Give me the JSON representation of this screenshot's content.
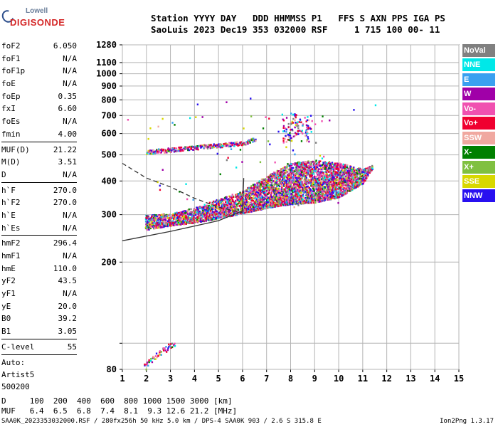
{
  "logo": {
    "line1": "Lowell",
    "line2": "DIGISONDE"
  },
  "header": {
    "line1": "Station YYYY DAY   DDD HHMMSS P1   FFS S AXN PPS IGA PS",
    "line2": "SaoLuis 2023 Dec19 353 032000 RSF     1 715 100 00- 11"
  },
  "params": {
    "group1": [
      {
        "name": "foF2",
        "value": "6.050"
      },
      {
        "name": "foF1",
        "value": "N/A"
      },
      {
        "name": "foF1p",
        "value": "N/A"
      },
      {
        "name": "foE",
        "value": "N/A"
      },
      {
        "name": "foEp",
        "value": "0.35"
      },
      {
        "name": "fxI",
        "value": "6.60"
      },
      {
        "name": "foEs",
        "value": "N/A"
      },
      {
        "name": "fmin",
        "value": "4.00"
      }
    ],
    "group2": [
      {
        "name": "MUF(D)",
        "value": "21.22"
      },
      {
        "name": "M(D)",
        "value": "3.51"
      },
      {
        "name": "D",
        "value": "N/A"
      }
    ],
    "group3": [
      {
        "name": "h`F",
        "value": "270.0"
      },
      {
        "name": "h`F2",
        "value": "270.0"
      },
      {
        "name": "h`E",
        "value": "N/A"
      },
      {
        "name": "h`Es",
        "value": "N/A"
      }
    ],
    "group4": [
      {
        "name": "hmF2",
        "value": "296.4"
      },
      {
        "name": "hmF1",
        "value": "N/A"
      },
      {
        "name": "hmE",
        "value": "110.0"
      },
      {
        "name": "yF2",
        "value": "43.5"
      },
      {
        "name": "yF1",
        "value": "N/A"
      },
      {
        "name": "yE",
        "value": "20.0"
      },
      {
        "name": "B0",
        "value": "39.2"
      },
      {
        "name": "B1",
        "value": "3.05"
      }
    ],
    "clevel": {
      "name": "C-level",
      "value": "55"
    },
    "auto": [
      "Auto:",
      "Artist5",
      "500200"
    ]
  },
  "legend": [
    {
      "label": "NoVal",
      "color": "#808080"
    },
    {
      "label": "NNE",
      "color": "#00e8e8"
    },
    {
      "label": "E",
      "color": "#3aa0f0"
    },
    {
      "label": "W",
      "color": "#a000a8"
    },
    {
      "label": "Vo-",
      "color": "#f050b0"
    },
    {
      "label": "Vo+",
      "color": "#f00030"
    },
    {
      "label": "SSW",
      "color": "#f0a8a0"
    },
    {
      "label": "X-",
      "color": "#008000"
    },
    {
      "label": "X+",
      "color": "#80c040"
    },
    {
      "label": "SSE",
      "color": "#d8d800"
    },
    {
      "label": "NNW",
      "color": "#2810f0"
    }
  ],
  "bottom": {
    "line1": "D     100  200  400  600  800 1000 1500 3000 [km]",
    "line2": "MUF   6.4  6.5  6.8  7.4  8.1  9.3 12.6 21.2 [MHz]"
  },
  "footer": "SAA0K_2023353032000.RSF / 280fx256h 50 kHz 5.0 km / DPS-4 SAA0K 903 / 2.6 S 315.8 E",
  "version": "Ion2Png 1.3.17",
  "chart_data": {
    "type": "scatter",
    "xlim": [
      1,
      15
    ],
    "ylim": [
      80,
      1280
    ],
    "y_scale": "log",
    "x_ticks": [
      1,
      2,
      3,
      4,
      5,
      6,
      7,
      8,
      9,
      10,
      11,
      12,
      13,
      14,
      15
    ],
    "y_ticks": [
      80,
      100,
      200,
      300,
      400,
      500,
      600,
      700,
      800,
      900,
      1000,
      1100,
      1280
    ],
    "y_tick_labels": [
      80,
      200,
      300,
      400,
      500,
      600,
      700,
      800,
      900,
      1000,
      1100,
      1280
    ],
    "grid": true,
    "traces": {
      "lower_trace_min_height": [
        [
          1.95,
          265
        ],
        [
          3,
          275
        ],
        [
          4,
          282
        ],
        [
          5,
          292
        ],
        [
          6,
          305
        ],
        [
          7,
          320
        ],
        [
          8,
          330
        ],
        [
          9,
          335
        ],
        [
          10,
          350
        ],
        [
          11,
          395
        ],
        [
          11.4,
          450
        ]
      ],
      "lower_trace_max_height": [
        [
          1.95,
          300
        ],
        [
          3,
          305
        ],
        [
          4,
          320
        ],
        [
          5,
          345
        ],
        [
          6,
          370
        ],
        [
          7,
          420
        ],
        [
          8,
          470
        ],
        [
          9,
          480
        ],
        [
          10,
          470
        ],
        [
          11,
          445
        ],
        [
          11.4,
          460
        ]
      ],
      "upper_trace": [
        [
          2,
          515
        ],
        [
          3,
          525
        ],
        [
          4,
          535
        ],
        [
          5,
          545
        ],
        [
          6,
          555
        ],
        [
          6.5,
          575
        ]
      ],
      "cluster_700": [
        [
          7.7,
          600
        ],
        [
          8.4,
          700
        ]
      ],
      "low_trace": [
        [
          1.9,
          82
        ],
        [
          2.5,
          92
        ],
        [
          3.1,
          100
        ]
      ],
      "scattered": [
        [
          1.2,
          680
        ],
        [
          4.1,
          775
        ],
        [
          5.3,
          790
        ],
        [
          6.3,
          815
        ],
        [
          10.6,
          740
        ],
        [
          11.5,
          770
        ],
        [
          9.3,
          700
        ]
      ]
    },
    "profile_solid": [
      [
        1,
        240
      ],
      [
        3,
        260
      ],
      [
        5,
        285
      ],
      [
        6,
        310
      ],
      [
        6.05,
        410
      ]
    ],
    "profile_dashed": [
      [
        1,
        465
      ],
      [
        2,
        410
      ],
      [
        3,
        380
      ],
      [
        4,
        345
      ],
      [
        5,
        320
      ],
      [
        6,
        305
      ]
    ]
  }
}
